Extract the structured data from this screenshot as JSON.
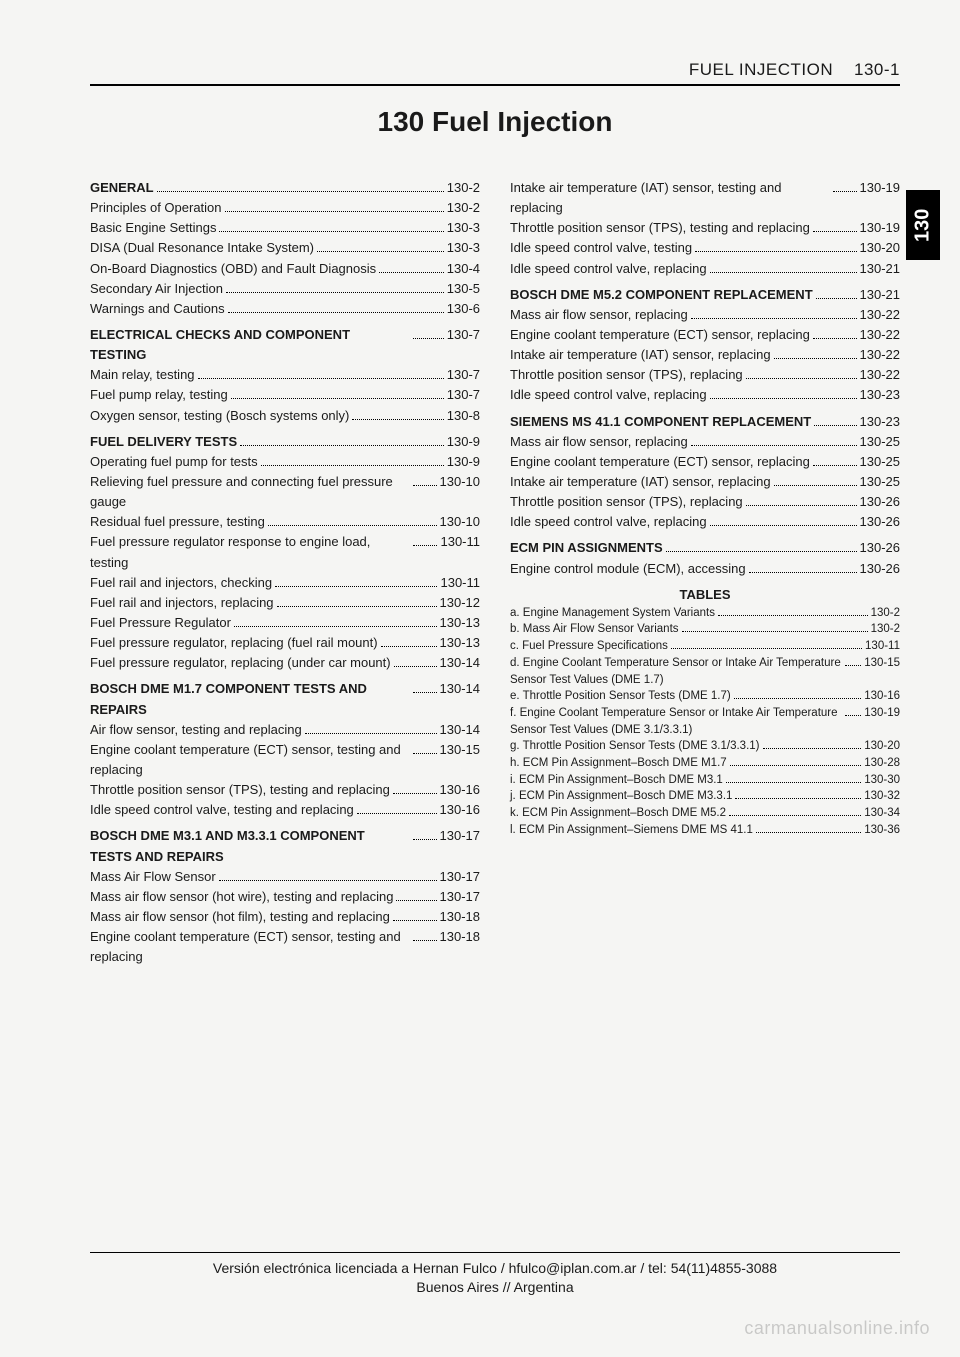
{
  "header": {
    "section": "FUEL INJECTION",
    "page": "130-1"
  },
  "title": "130 Fuel Injection",
  "side_tab": "130",
  "left": [
    {
      "t": "heading",
      "label": "GENERAL",
      "pg": "130-2"
    },
    {
      "t": "item",
      "label": "Principles of Operation",
      "pg": "130-2"
    },
    {
      "t": "item",
      "label": "Basic Engine Settings",
      "pg": "130-3"
    },
    {
      "t": "item",
      "label": "DISA (Dual Resonance Intake System)",
      "pg": "130-3"
    },
    {
      "t": "item",
      "label": "On-Board Diagnostics (OBD) and Fault Diagnosis",
      "pg": "130-4"
    },
    {
      "t": "item",
      "label": "Secondary Air Injection",
      "pg": "130-5"
    },
    {
      "t": "item",
      "label": "Warnings and Cautions",
      "pg": "130-6"
    },
    {
      "t": "gap"
    },
    {
      "t": "heading",
      "label": "ELECTRICAL CHECKS AND COMPONENT TESTING",
      "pg": "130-7"
    },
    {
      "t": "item",
      "label": "Main relay, testing",
      "pg": "130-7"
    },
    {
      "t": "item",
      "label": "Fuel pump relay, testing",
      "pg": "130-7"
    },
    {
      "t": "item",
      "label": "Oxygen sensor, testing (Bosch systems only)",
      "pg": "130-8"
    },
    {
      "t": "gap"
    },
    {
      "t": "heading",
      "label": "FUEL DELIVERY TESTS",
      "pg": "130-9"
    },
    {
      "t": "item",
      "label": "Operating fuel pump for tests",
      "pg": "130-9"
    },
    {
      "t": "item",
      "label": "Relieving fuel pressure and connecting fuel pressure gauge",
      "pg": "130-10"
    },
    {
      "t": "item",
      "label": "Residual fuel pressure, testing",
      "pg": "130-10"
    },
    {
      "t": "item",
      "label": "Fuel pressure regulator response to engine load, testing",
      "pg": "130-11"
    },
    {
      "t": "item",
      "label": "Fuel rail and injectors, checking",
      "pg": "130-11"
    },
    {
      "t": "item",
      "label": "Fuel rail and injectors, replacing",
      "pg": "130-12"
    },
    {
      "t": "item",
      "label": "Fuel Pressure Regulator",
      "pg": "130-13"
    },
    {
      "t": "item",
      "label": "Fuel pressure regulator, replacing (fuel rail mount)",
      "pg": "130-13"
    },
    {
      "t": "item",
      "label": "Fuel pressure regulator, replacing (under car mount)",
      "pg": "130-14"
    },
    {
      "t": "gap"
    },
    {
      "t": "heading",
      "label": "BOSCH DME M1.7 COMPONENT TESTS AND REPAIRS",
      "pg": "130-14"
    },
    {
      "t": "item",
      "label": "Air flow sensor, testing and replacing",
      "pg": "130-14"
    },
    {
      "t": "item",
      "label": "Engine coolant temperature (ECT) sensor, testing and replacing",
      "pg": "130-15"
    },
    {
      "t": "item",
      "label": "Throttle position sensor (TPS), testing and replacing",
      "pg": "130-16"
    },
    {
      "t": "item",
      "label": "Idle speed control valve, testing and replacing",
      "pg": "130-16"
    },
    {
      "t": "gap"
    },
    {
      "t": "heading",
      "label": "BOSCH DME M3.1 AND M3.3.1 COMPONENT TESTS AND REPAIRS",
      "pg": "130-17"
    },
    {
      "t": "item",
      "label": "Mass Air Flow Sensor",
      "pg": "130-17"
    },
    {
      "t": "item",
      "label": "Mass air flow sensor (hot wire), testing and replacing",
      "pg": "130-17"
    },
    {
      "t": "item",
      "label": "Mass air flow sensor (hot film), testing and replacing",
      "pg": "130-18"
    },
    {
      "t": "item",
      "label": "Engine coolant temperature (ECT) sensor, testing and replacing",
      "pg": "130-18"
    }
  ],
  "right": [
    {
      "t": "item",
      "label": "Intake air temperature (IAT) sensor, testing and replacing",
      "pg": "130-19"
    },
    {
      "t": "item",
      "label": "Throttle position sensor (TPS), testing and replacing",
      "pg": "130-19"
    },
    {
      "t": "item",
      "label": "Idle speed control valve, testing",
      "pg": "130-20"
    },
    {
      "t": "item",
      "label": "Idle speed control valve, replacing",
      "pg": "130-21"
    },
    {
      "t": "gap"
    },
    {
      "t": "heading",
      "label": "BOSCH DME M5.2 COMPONENT REPLACEMENT",
      "pg": "130-21"
    },
    {
      "t": "item",
      "label": "Mass air flow sensor, replacing",
      "pg": "130-22"
    },
    {
      "t": "item",
      "label": "Engine coolant temperature (ECT) sensor, replacing",
      "pg": "130-22"
    },
    {
      "t": "item",
      "label": "Intake air temperature (IAT) sensor, replacing",
      "pg": "130-22"
    },
    {
      "t": "item",
      "label": "Throttle position sensor (TPS), replacing",
      "pg": "130-22"
    },
    {
      "t": "item",
      "label": "Idle speed control valve, replacing",
      "pg": "130-23"
    },
    {
      "t": "gap"
    },
    {
      "t": "heading",
      "label": "SIEMENS MS 41.1 COMPONENT REPLACEMENT",
      "pg": "130-23"
    },
    {
      "t": "item",
      "label": "Mass air flow sensor, replacing",
      "pg": "130-25"
    },
    {
      "t": "item",
      "label": "Engine coolant temperature (ECT) sensor, replacing",
      "pg": "130-25"
    },
    {
      "t": "item",
      "label": "Intake air temperature (IAT) sensor, replacing",
      "pg": "130-25"
    },
    {
      "t": "item",
      "label": "Throttle position sensor (TPS), replacing",
      "pg": "130-26"
    },
    {
      "t": "item",
      "label": "Idle speed control valve, replacing",
      "pg": "130-26"
    },
    {
      "t": "gap"
    },
    {
      "t": "heading",
      "label": "ECM PIN ASSIGNMENTS",
      "pg": "130-26"
    },
    {
      "t": "item",
      "label": "Engine control module (ECM), accessing",
      "pg": "130-26"
    }
  ],
  "tables_title": "TABLES",
  "tables": [
    {
      "k": "a.",
      "label": "Engine Management System Variants",
      "pg": "130-2"
    },
    {
      "k": "b.",
      "label": "Mass Air Flow Sensor Variants",
      "pg": "130-2"
    },
    {
      "k": "c.",
      "label": "Fuel Pressure Specifications",
      "pg": "130-11"
    },
    {
      "k": "d.",
      "label": "Engine Coolant Temperature Sensor or Intake Air Temperature Sensor Test Values (DME 1.7)",
      "pg": "130-15"
    },
    {
      "k": "e.",
      "label": "Throttle Position Sensor Tests (DME 1.7)",
      "pg": "130-16"
    },
    {
      "k": "f.",
      "label": "Engine Coolant Temperature Sensor or Intake Air Temperature Sensor Test Values (DME 3.1/3.3.1)",
      "pg": "130-19"
    },
    {
      "k": "g.",
      "label": "Throttle Position Sensor Tests (DME 3.1/3.3.1)",
      "pg": "130-20"
    },
    {
      "k": "h.",
      "label": "ECM Pin Assignment–Bosch DME M1.7",
      "pg": "130-28"
    },
    {
      "k": "i.",
      "label": "ECM Pin Assignment–Bosch DME M3.1",
      "pg": "130-30"
    },
    {
      "k": "j.",
      "label": "ECM Pin Assignment–Bosch DME M3.3.1",
      "pg": "130-32"
    },
    {
      "k": "k.",
      "label": "ECM Pin Assignment–Bosch DME M5.2",
      "pg": "130-34"
    },
    {
      "k": "l.",
      "label": "ECM Pin Assignment–Siemens DME MS 41.1",
      "pg": "130-36"
    }
  ],
  "footer": {
    "line1": "Versión electrónica licenciada a Hernan Fulco / hfulco@iplan.com.ar / tel: 54(11)4855-3088",
    "line2": "Buenos Aires // Argentina"
  },
  "watermark": "carmanualsonline.info"
}
